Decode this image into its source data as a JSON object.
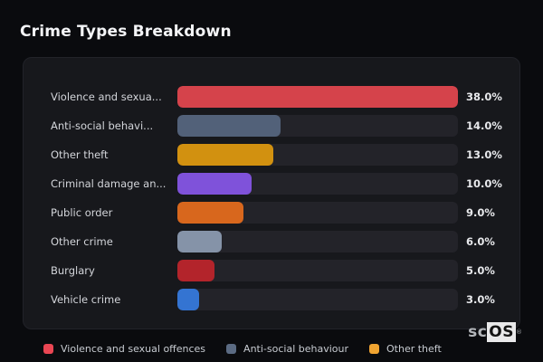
{
  "page": {
    "title": "Crime Types Breakdown"
  },
  "colors": {
    "page_bg": "#0a0b0e",
    "card_bg": "#17181c",
    "bar_track": "#232329",
    "category_text": "#d3d5da",
    "value_text": "#e8e9ec",
    "title_text": "#f4f5f7",
    "legend_text": "#c7cbd1"
  },
  "chart_data": {
    "type": "bar",
    "orientation": "horizontal",
    "title": "Crime Types Breakdown",
    "xlabel": "",
    "ylabel": "",
    "xlim": [
      0,
      38
    ],
    "grid": false,
    "categories": [
      "Violence and sexua...",
      "Anti-social behavi...",
      "Other theft",
      "Criminal damage an...",
      "Public order",
      "Other crime",
      "Burglary",
      "Vehicle crime"
    ],
    "values": [
      38.0,
      14.0,
      13.0,
      10.0,
      9.0,
      6.0,
      5.0,
      3.0
    ],
    "value_labels": [
      "38.0%",
      "14.0%",
      "13.0%",
      "10.0%",
      "9.0%",
      "6.0%",
      "5.0%",
      "3.0%"
    ],
    "bar_colors": [
      "#d5434b",
      "#526179",
      "#d29110",
      "#7f52da",
      "#d8671d",
      "#8593a8",
      "#b3242b",
      "#3474d2"
    ],
    "legend_position": "bottom-left",
    "legend": [
      {
        "label": "Violence and sexual offences",
        "color": "#ea4653"
      },
      {
        "label": "Anti-social behaviour",
        "color": "#5b6b83"
      },
      {
        "label": "Other theft",
        "color": "#f0a431"
      }
    ]
  },
  "watermark": {
    "prefix": "sc",
    "suffix": "OS",
    "registered": "®"
  }
}
